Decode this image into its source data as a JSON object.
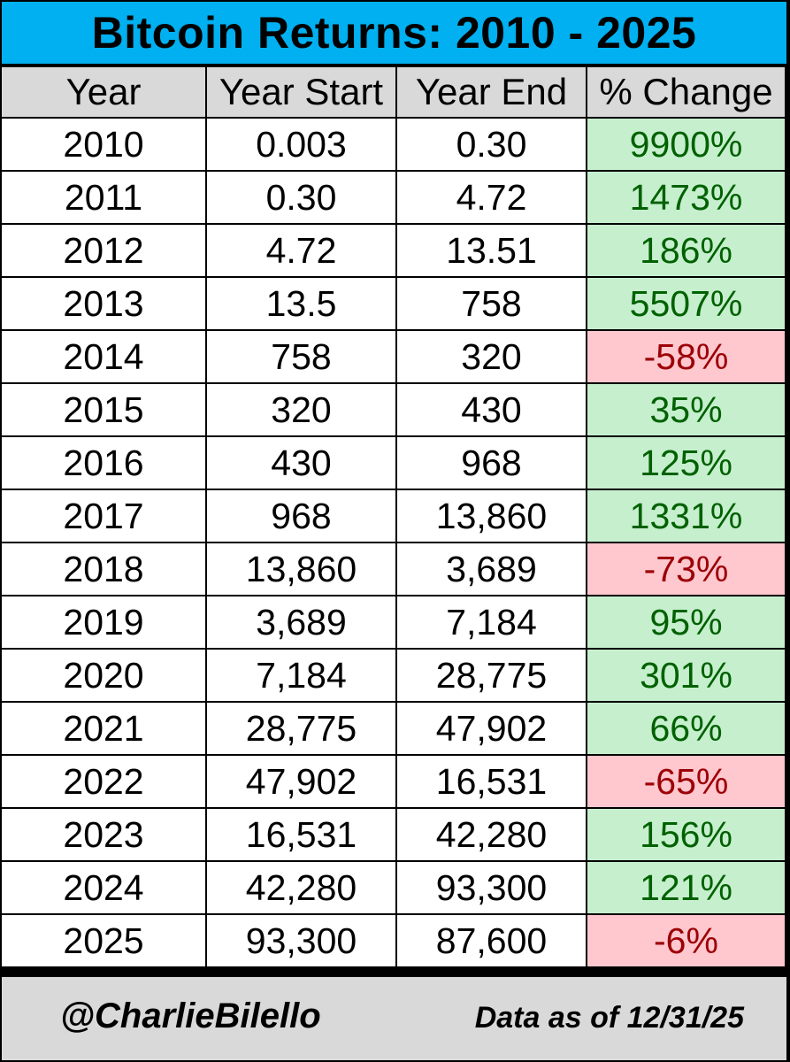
{
  "chart_data": {
    "type": "table",
    "title": "Bitcoin Returns: 2010 - 2025",
    "columns": [
      "Year",
      "Year Start",
      "Year End",
      "% Change"
    ],
    "rows": [
      {
        "year": "2010",
        "start": "0.003",
        "end": "0.30",
        "change": "9900%",
        "change_value": 9900
      },
      {
        "year": "2011",
        "start": "0.30",
        "end": "4.72",
        "change": "1473%",
        "change_value": 1473
      },
      {
        "year": "2012",
        "start": "4.72",
        "end": "13.51",
        "change": "186%",
        "change_value": 186
      },
      {
        "year": "2013",
        "start": "13.5",
        "end": "758",
        "change": "5507%",
        "change_value": 5507
      },
      {
        "year": "2014",
        "start": "758",
        "end": "320",
        "change": "-58%",
        "change_value": -58
      },
      {
        "year": "2015",
        "start": "320",
        "end": "430",
        "change": "35%",
        "change_value": 35
      },
      {
        "year": "2016",
        "start": "430",
        "end": "968",
        "change": "125%",
        "change_value": 125
      },
      {
        "year": "2017",
        "start": "968",
        "end": "13,860",
        "change": "1331%",
        "change_value": 1331
      },
      {
        "year": "2018",
        "start": "13,860",
        "end": "3,689",
        "change": "-73%",
        "change_value": -73
      },
      {
        "year": "2019",
        "start": "3,689",
        "end": "7,184",
        "change": "95%",
        "change_value": 95
      },
      {
        "year": "2020",
        "start": "7,184",
        "end": "28,775",
        "change": "301%",
        "change_value": 301
      },
      {
        "year": "2021",
        "start": "28,775",
        "end": "47,902",
        "change": "66%",
        "change_value": 66
      },
      {
        "year": "2022",
        "start": "47,902",
        "end": "16,531",
        "change": "-65%",
        "change_value": -65
      },
      {
        "year": "2023",
        "start": "16,531",
        "end": "42,280",
        "change": "156%",
        "change_value": 156
      },
      {
        "year": "2024",
        "start": "42,280",
        "end": "93,300",
        "change": "121%",
        "change_value": 121
      },
      {
        "year": "2025",
        "start": "93,300",
        "end": "87,600",
        "change": "-6%",
        "change_value": -6
      }
    ]
  },
  "footer": {
    "handle": "@CharlieBilello",
    "as_of": "Data as of 12/31/25"
  },
  "colors": {
    "title_background": "#00b0f0",
    "header_background": "#d9d9d9",
    "positive_fill": "#c6efce",
    "positive_text": "#006100",
    "negative_fill": "#ffc7ce",
    "negative_text": "#9c0006"
  }
}
